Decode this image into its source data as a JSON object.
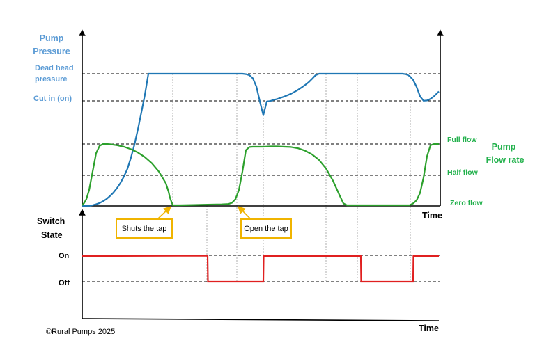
{
  "chart_data": [
    {
      "type": "line",
      "title": "",
      "ylabel": [
        "Pump",
        "Pressure"
      ],
      "ylabel_right": [
        "Pump",
        "Flow rate"
      ],
      "xlabel": "Time",
      "pressure_levels": [
        "Dead head",
        "pressure",
        "Cut in (on)"
      ],
      "flow_levels": [
        "Full flow",
        "Half flow",
        "Zero flow"
      ],
      "series": [
        {
          "name": "",
          "color": "#1f77b4",
          "x": [
            0,
            5,
            10,
            15,
            20,
            25,
            30,
            35,
            40,
            45,
            50,
            55,
            60,
            65,
            70,
            75,
            80,
            85,
            88,
            90,
            95,
            100,
            105,
            110,
            115,
            120,
            125,
            130,
            135,
            140,
            145,
            150,
            155,
            160,
            165,
            170,
            175,
            180,
            185,
            190,
            195,
            200,
            205,
            208,
            210,
            215,
            220,
            225,
            230,
            235,
            240,
            245,
            250,
            255,
            260,
            265,
            270,
            275,
            280,
            285,
            290,
            295,
            300,
            305,
            310,
            315,
            320,
            325,
            330,
            335,
            340,
            345,
            350,
            355,
            360,
            365,
            370,
            375,
            380,
            385,
            390,
            395,
            400,
            405,
            410,
            415,
            420,
            425,
            430,
            435,
            440,
            445,
            450,
            455,
            460,
            465,
            470,
            475,
            480,
            485,
            490,
            495,
            500,
            505,
            510,
            512
          ],
          "y": [
            0,
            0.05,
            0.1,
            0.6,
            1.3,
            2.2,
            3.6,
            5.3,
            7.6,
            10.3,
            13.6,
            17.6,
            22.5,
            28.4,
            36.8,
            46.7,
            58.4,
            71.4,
            79.3,
            84.5,
            100,
            100,
            100,
            100,
            100,
            100,
            100,
            100,
            100,
            100,
            100,
            100,
            100,
            100,
            100,
            100,
            100,
            100,
            100,
            100,
            100,
            100,
            100,
            100,
            100,
            100,
            100,
            100,
            100,
            99.7,
            98.9,
            96.6,
            90.6,
            79.6,
            69.1,
            79.6,
            79.9,
            80.7,
            81.4,
            82.3,
            83.2,
            84.2,
            85.3,
            86.7,
            88.2,
            89.9,
            91.7,
            93.7,
            96.2,
            98.9,
            100,
            100,
            100,
            100,
            100,
            100,
            100,
            100,
            100,
            100,
            100,
            100,
            100,
            100,
            100,
            100,
            100,
            100,
            100,
            100,
            100,
            100,
            100,
            100,
            100,
            99.6,
            98.3,
            95.5,
            90.3,
            83.4,
            80.1,
            80.3,
            81.5,
            83.4,
            85.9,
            86.9
          ],
          "note": "pressure, 0 = baseline, 80 = cut in, 100 = dead head"
        },
        {
          "name": "",
          "color": "#2ca02c",
          "x": [
            0,
            3,
            6,
            10,
            15,
            20,
            25,
            30,
            35,
            40,
            50,
            60,
            70,
            80,
            90,
            100,
            110,
            120,
            124,
            126,
            130,
            140,
            160,
            180,
            200,
            210,
            215,
            220,
            225,
            230,
            235,
            240,
            245,
            250,
            260,
            270,
            280,
            290,
            300,
            310,
            320,
            330,
            340,
            350,
            360,
            370,
            375,
            380,
            385,
            390,
            393,
            395,
            400,
            420,
            440,
            460,
            470,
            475,
            480,
            485,
            490,
            495,
            500,
            505,
            510,
            512
          ],
          "y": [
            0,
            4,
            10,
            25,
            55,
            85,
            97,
            100,
            100,
            99.5,
            98,
            95.5,
            91.5,
            86,
            78.5,
            68.5,
            55,
            36,
            22,
            12,
            0,
            0,
            0.5,
            1,
            1.5,
            2,
            4,
            10,
            25,
            55,
            90,
            95,
            95.5,
            95.5,
            95.5,
            96,
            96,
            95.5,
            95,
            93,
            89,
            83,
            74,
            60,
            40,
            15,
            3,
            0,
            0,
            0,
            0,
            0,
            0,
            0,
            0,
            0,
            0,
            3,
            8,
            20,
            45,
            80,
            98,
            100,
            100,
            100
          ],
          "note": "flow rate, 0 = zero flow, 50 = half flow, 100 = full flow"
        }
      ],
      "annotations": [
        "Shuts the tap",
        "Open the tap"
      ]
    },
    {
      "type": "line",
      "title": "",
      "ylabel": [
        "Switch",
        "State"
      ],
      "xlabel": "Time",
      "levels": [
        "On",
        "Off"
      ],
      "series": [
        {
          "name": "",
          "color": "#e02020",
          "x": [
            0,
            180,
            180.5,
            260,
            260.5,
            400,
            400.5,
            475,
            475.5,
            512
          ],
          "y": [
            1,
            1.01,
            0,
            0,
            1,
            1,
            0,
            0,
            1,
            1
          ],
          "note": "switch state, 1 = On, 0 = Off"
        }
      ]
    }
  ],
  "copyright": "©Rural Pumps 2025"
}
